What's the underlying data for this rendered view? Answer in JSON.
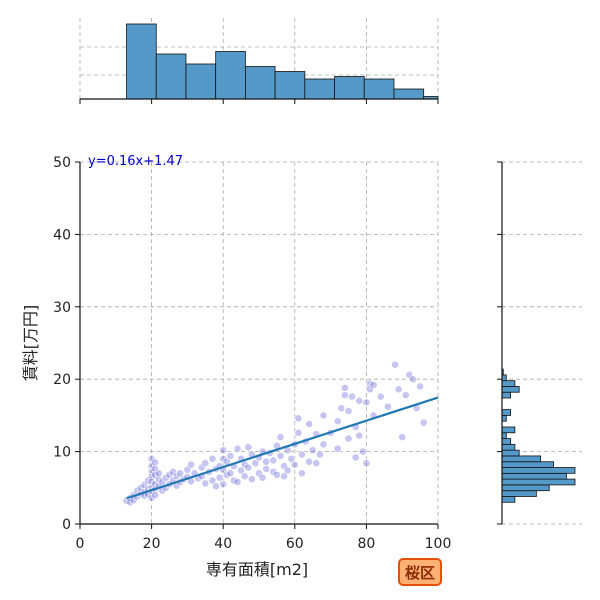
{
  "chart_data": {
    "type": "scatter",
    "xlabel": "専有面積[m2]",
    "ylabel": "賃料[万円]",
    "xlim": [
      0,
      100
    ],
    "ylim": [
      0,
      50
    ],
    "x_ticks": [
      0,
      20,
      40,
      60,
      80,
      100
    ],
    "y_ticks": [
      0,
      10,
      20,
      30,
      40,
      50
    ],
    "grid": true,
    "point_color": "#5b5bd6",
    "line_color": "#1f77b4",
    "hist_color": "#5599c8",
    "equation_color": "#0000cc",
    "regression": {
      "label": "y=0.16x+1.47",
      "slope": 0.16,
      "intercept": 1.47,
      "x_range": [
        13,
        100
      ]
    },
    "points": [
      [
        13,
        3.2
      ],
      [
        14,
        3.6
      ],
      [
        14,
        3.0
      ],
      [
        15,
        4.0
      ],
      [
        15,
        3.3
      ],
      [
        16,
        4.6
      ],
      [
        16,
        3.8
      ],
      [
        17,
        4.2
      ],
      [
        17,
        5.0
      ],
      [
        18,
        4.4
      ],
      [
        18,
        3.9
      ],
      [
        18,
        5.4
      ],
      [
        19,
        4.8
      ],
      [
        19,
        4.1
      ],
      [
        19,
        6.0
      ],
      [
        20,
        9.0
      ],
      [
        20,
        8.0
      ],
      [
        20,
        7.2
      ],
      [
        20,
        6.5
      ],
      [
        20,
        5.8
      ],
      [
        20,
        5.0
      ],
      [
        20,
        4.5
      ],
      [
        20,
        3.6
      ],
      [
        21,
        8.5
      ],
      [
        21,
        7.6
      ],
      [
        21,
        6.8
      ],
      [
        21,
        5.5
      ],
      [
        21,
        4.8
      ],
      [
        21,
        4.0
      ],
      [
        22,
        6.2
      ],
      [
        22,
        5.2
      ],
      [
        22,
        7.0
      ],
      [
        23,
        5.8
      ],
      [
        23,
        4.6
      ],
      [
        24,
        6.4
      ],
      [
        24,
        5.0
      ],
      [
        25,
        6.8
      ],
      [
        25,
        5.5
      ],
      [
        26,
        7.2
      ],
      [
        26,
        6.0
      ],
      [
        27,
        5.3
      ],
      [
        27,
        6.6
      ],
      [
        28,
        7.0
      ],
      [
        28,
        5.8
      ],
      [
        29,
        6.2
      ],
      [
        30,
        7.5
      ],
      [
        30,
        6.5
      ],
      [
        31,
        5.9
      ],
      [
        31,
        8.2
      ],
      [
        32,
        7.0
      ],
      [
        33,
        6.3
      ],
      [
        34,
        7.8
      ],
      [
        34,
        6.6
      ],
      [
        35,
        5.6
      ],
      [
        35,
        8.4
      ],
      [
        36,
        7.2
      ],
      [
        37,
        6.0
      ],
      [
        37,
        9.0
      ],
      [
        38,
        7.6
      ],
      [
        38,
        5.2
      ],
      [
        39,
        8.0
      ],
      [
        39,
        6.4
      ],
      [
        40,
        10.2
      ],
      [
        40,
        9.0
      ],
      [
        40,
        7.5
      ],
      [
        40,
        5.5
      ],
      [
        41,
        8.6
      ],
      [
        41,
        6.8
      ],
      [
        42,
        9.4
      ],
      [
        42,
        7.0
      ],
      [
        43,
        6.0
      ],
      [
        43,
        8.0
      ],
      [
        44,
        10.4
      ],
      [
        44,
        5.8
      ],
      [
        45,
        9.0
      ],
      [
        45,
        7.4
      ],
      [
        46,
        8.2
      ],
      [
        46,
        6.6
      ],
      [
        47,
        10.6
      ],
      [
        47,
        7.8
      ],
      [
        48,
        9.6
      ],
      [
        48,
        6.2
      ],
      [
        49,
        8.4
      ],
      [
        50,
        9.2
      ],
      [
        50,
        7.0
      ],
      [
        51,
        10.0
      ],
      [
        51,
        6.4
      ],
      [
        52,
        8.6
      ],
      [
        52,
        7.6
      ],
      [
        53,
        9.8
      ],
      [
        54,
        7.2
      ],
      [
        54,
        8.8
      ],
      [
        55,
        6.8
      ],
      [
        55,
        10.8
      ],
      [
        56,
        9.4
      ],
      [
        56,
        12.0
      ],
      [
        57,
        8.0
      ],
      [
        57,
        6.6
      ],
      [
        58,
        10.2
      ],
      [
        58,
        7.4
      ],
      [
        59,
        9.0
      ],
      [
        60,
        11.0
      ],
      [
        60,
        8.2
      ],
      [
        61,
        14.6
      ],
      [
        61,
        12.6
      ],
      [
        62,
        9.6
      ],
      [
        62,
        7.0
      ],
      [
        63,
        11.4
      ],
      [
        64,
        13.8
      ],
      [
        64,
        8.6
      ],
      [
        65,
        10.2
      ],
      [
        66,
        8.4
      ],
      [
        66,
        12.4
      ],
      [
        67,
        9.6
      ],
      [
        68,
        15.0
      ],
      [
        68,
        11.0
      ],
      [
        70,
        12.6
      ],
      [
        72,
        14.2
      ],
      [
        72,
        10.4
      ],
      [
        73,
        16.0
      ],
      [
        74,
        18.8
      ],
      [
        74,
        17.8
      ],
      [
        75,
        15.6
      ],
      [
        75,
        11.8
      ],
      [
        76,
        17.6
      ],
      [
        77,
        13.4
      ],
      [
        77,
        9.2
      ],
      [
        78,
        17.0
      ],
      [
        78,
        12.2
      ],
      [
        79,
        10.0
      ],
      [
        80,
        16.8
      ],
      [
        80,
        8.4
      ],
      [
        81,
        19.4
      ],
      [
        81,
        18.6
      ],
      [
        82,
        19.2
      ],
      [
        82,
        15.0
      ],
      [
        84,
        17.6
      ],
      [
        86,
        16.2
      ],
      [
        88,
        22.0
      ],
      [
        89,
        18.6
      ],
      [
        90,
        12.0
      ],
      [
        91,
        17.8
      ],
      [
        92,
        20.6
      ],
      [
        93,
        20.0
      ],
      [
        94,
        16.0
      ],
      [
        95,
        19.0
      ],
      [
        96,
        14.0
      ]
    ],
    "x_hist": {
      "bin_edges": [
        13,
        21.3,
        29.6,
        37.9,
        46.2,
        54.5,
        62.8,
        71.1,
        79.4,
        87.7,
        96,
        100
      ],
      "counts": [
        30,
        18,
        14,
        19,
        13,
        11,
        8,
        9,
        8,
        4,
        1
      ]
    },
    "y_hist": {
      "bin_edges": [
        3.0,
        3.8,
        4.6,
        5.4,
        6.2,
        7.0,
        7.8,
        8.6,
        9.4,
        10.2,
        11.0,
        11.8,
        12.6,
        13.4,
        14.2,
        15.0,
        15.8,
        16.6,
        17.4,
        18.2,
        19.0,
        19.8,
        20.6,
        21.4
      ],
      "counts": [
        3,
        8,
        11,
        17,
        15,
        17,
        12,
        9,
        4,
        3,
        2,
        1,
        3,
        0,
        1,
        2,
        0,
        0,
        2,
        4,
        3,
        1,
        0.3
      ]
    }
  },
  "badge": {
    "label": "桜区",
    "fill": "#ffb074",
    "border": "#e65100"
  }
}
